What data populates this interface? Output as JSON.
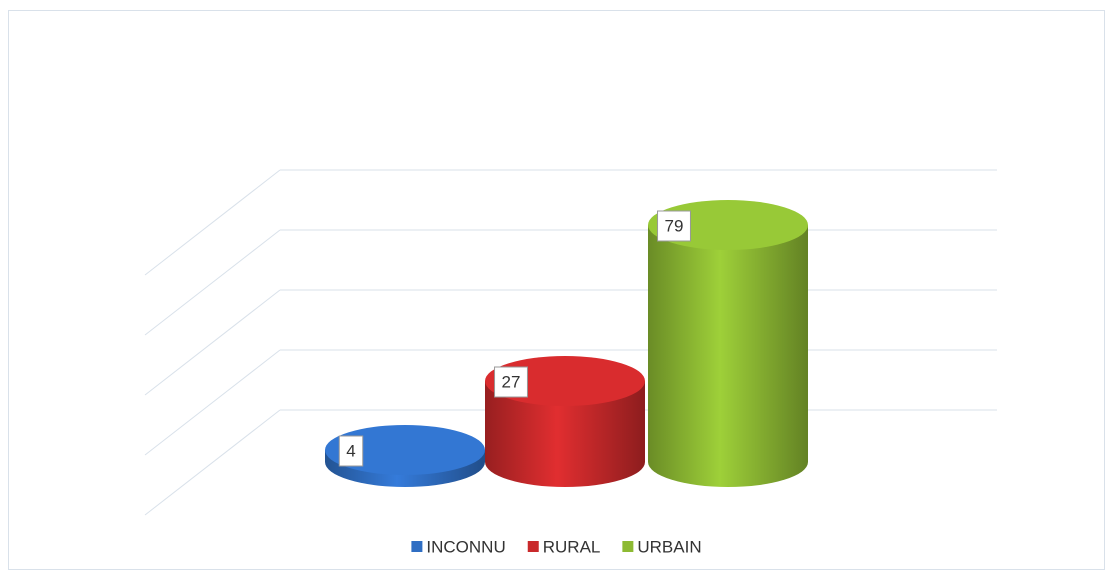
{
  "chart_data": {
    "type": "cylinder",
    "categories": [
      "INCONNU",
      "RURAL",
      "URBAIN"
    ],
    "series": [
      {
        "name": "INCONNU",
        "color": "#2f6ec3",
        "values": [
          4,
          null,
          null
        ]
      },
      {
        "name": "RURAL",
        "color": "#c9292b",
        "values": [
          null,
          27,
          null
        ]
      },
      {
        "name": "URBAIN",
        "color": "#8dba33",
        "values": [
          null,
          null,
          79
        ]
      }
    ],
    "ylim": [
      0,
      80
    ],
    "yticks": [
      0,
      20,
      40,
      60,
      80
    ],
    "grid": true,
    "legend": "bottom"
  }
}
